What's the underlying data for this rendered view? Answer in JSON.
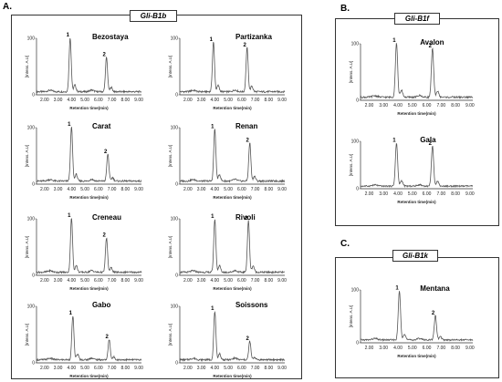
{
  "panels": [
    {
      "letter": "A.",
      "gene": "Gli-B1b"
    },
    {
      "letter": "B.",
      "gene": "Gli-B1f"
    },
    {
      "letter": "C.",
      "gene": "Gli-B1k"
    }
  ],
  "chart_data": {
    "type": "line",
    "x_tick_labels": [
      "2.00",
      "3.00",
      "4.00",
      "5.00",
      "6.00",
      "7.00",
      "8.00",
      "9.00"
    ],
    "y_tick_labels": [
      "0",
      "100"
    ],
    "xlabel": "Retention time(min)",
    "ylabel": "[Intens. A.U]",
    "xlim": [
      1.4,
      9.2
    ],
    "ylim": [
      0,
      100
    ],
    "peak_labels": [
      "1",
      "2"
    ],
    "charts": [
      {
        "panel": "A.",
        "name": "Bezostaya",
        "peaks": [
          {
            "label": "1",
            "x": 3.9,
            "y": 100
          },
          {
            "label": "2",
            "x": 6.6,
            "y": 65
          }
        ]
      },
      {
        "panel": "A.",
        "name": "Partizanka",
        "peaks": [
          {
            "label": "1",
            "x": 3.9,
            "y": 92
          },
          {
            "label": "2",
            "x": 6.4,
            "y": 82
          }
        ]
      },
      {
        "panel": "A.",
        "name": "Carat",
        "peaks": [
          {
            "label": "1",
            "x": 4.0,
            "y": 100
          },
          {
            "label": "2",
            "x": 6.7,
            "y": 52
          }
        ]
      },
      {
        "panel": "A.",
        "name": "Renan",
        "peaks": [
          {
            "label": "1",
            "x": 4.0,
            "y": 96
          },
          {
            "label": "2",
            "x": 6.6,
            "y": 72
          }
        ]
      },
      {
        "panel": "A.",
        "name": "Creneau",
        "peaks": [
          {
            "label": "1",
            "x": 4.0,
            "y": 100
          },
          {
            "label": "2",
            "x": 6.6,
            "y": 65
          }
        ]
      },
      {
        "panel": "A.",
        "name": "Rivoli",
        "peaks": [
          {
            "label": "1",
            "x": 4.0,
            "y": 98
          },
          {
            "label": "2",
            "x": 6.5,
            "y": 95
          }
        ]
      },
      {
        "panel": "A.",
        "name": "Gabo",
        "peaks": [
          {
            "label": "1",
            "x": 4.1,
            "y": 82
          },
          {
            "label": "2",
            "x": 6.8,
            "y": 40
          }
        ]
      },
      {
        "panel": "A.",
        "name": "Soissons",
        "peaks": [
          {
            "label": "1",
            "x": 4.0,
            "y": 90
          },
          {
            "label": "2",
            "x": 6.6,
            "y": 37
          }
        ]
      },
      {
        "panel": "B.",
        "name": "Avalon",
        "peaks": [
          {
            "label": "1",
            "x": 3.9,
            "y": 100
          },
          {
            "label": "2",
            "x": 6.4,
            "y": 90
          }
        ]
      },
      {
        "panel": "B.",
        "name": "Gala",
        "peaks": [
          {
            "label": "1",
            "x": 3.9,
            "y": 95
          },
          {
            "label": "2",
            "x": 6.4,
            "y": 88
          }
        ]
      },
      {
        "panel": "C.",
        "name": "Mentana",
        "peaks": [
          {
            "label": "1",
            "x": 4.1,
            "y": 97
          },
          {
            "label": "2",
            "x": 6.6,
            "y": 50
          }
        ]
      }
    ]
  }
}
